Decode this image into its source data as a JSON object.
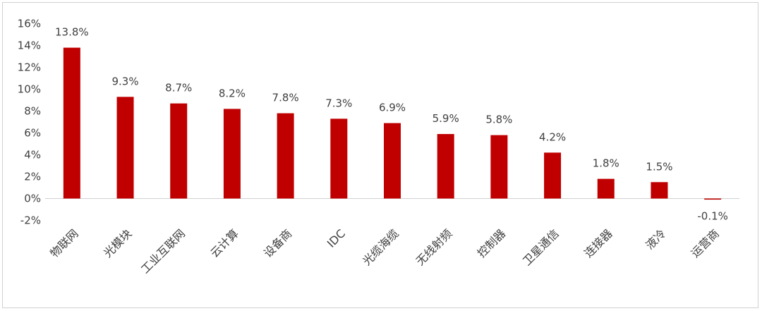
{
  "chart_data": {
    "type": "bar",
    "title": "",
    "xlabel": "",
    "ylabel": "",
    "ylim": [
      -0.02,
      0.16
    ],
    "yticks": [
      "16%",
      "14%",
      "12%",
      "10%",
      "8%",
      "6%",
      "4%",
      "2%",
      "0%",
      "-2%"
    ],
    "categories": [
      "物联网",
      "光模块",
      "工业互联网",
      "云计算",
      "设备商",
      "IDC",
      "光缆海缆",
      "无线射频",
      "控制器",
      "卫星通信",
      "连接器",
      "液冷",
      "运营商"
    ],
    "values": [
      0.138,
      0.093,
      0.087,
      0.082,
      0.078,
      0.073,
      0.069,
      0.059,
      0.058,
      0.042,
      0.018,
      0.015,
      -0.001
    ],
    "labels": [
      "13.8%",
      "9.3%",
      "8.7%",
      "8.2%",
      "7.8%",
      "7.3%",
      "6.9%",
      "5.9%",
      "5.8%",
      "4.2%",
      "1.8%",
      "1.5%",
      "-0.1%"
    ],
    "bar_color": "#c00000",
    "grid": false,
    "legend": "none"
  }
}
